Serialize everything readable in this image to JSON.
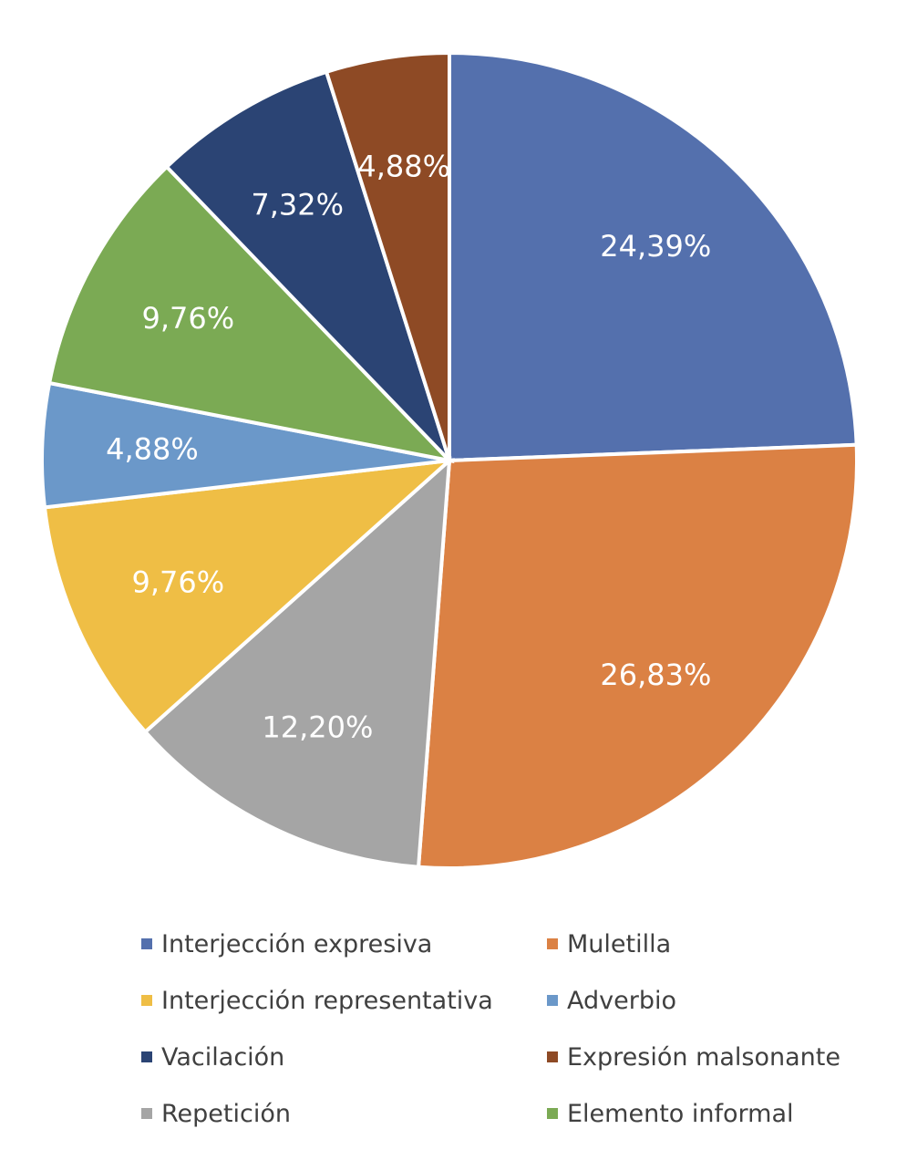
{
  "chart_data": {
    "type": "pie",
    "title": "",
    "start_angle_deg": 0,
    "direction": "clockwise",
    "slices": [
      {
        "name": "Interjección expresiva",
        "value": 24.39,
        "label": "24,39%",
        "color": "#5470AD"
      },
      {
        "name": "Muletilla",
        "value": 26.83,
        "label": "26,83%",
        "color": "#DB8144"
      },
      {
        "name": "Repetición",
        "value": 12.2,
        "label": "12,20%",
        "color": "#A5A5A5"
      },
      {
        "name": "Interjección representativa",
        "value": 9.76,
        "label": "9,76%",
        "color": "#EFBE45"
      },
      {
        "name": "Adverbio",
        "value": 4.88,
        "label": "4,88%",
        "color": "#6B98C9"
      },
      {
        "name": "Elemento informal",
        "value": 9.76,
        "label": "9,76%",
        "color": "#7BAA54"
      },
      {
        "name": "Vacilación",
        "value": 7.32,
        "label": "7,32%",
        "color": "#2B4474"
      },
      {
        "name": "Expresión malsonante",
        "value": 4.88,
        "label": "4,88%",
        "color": "#8E4A25"
      }
    ],
    "legend": {
      "placement": "bottom",
      "columns": 2,
      "order": [
        "Interjección expresiva",
        "Muletilla",
        "Interjección representativa",
        "Adverbio",
        "Vacilación",
        "Expresión malsonante",
        "Repetición",
        "Elemento informal"
      ]
    }
  }
}
